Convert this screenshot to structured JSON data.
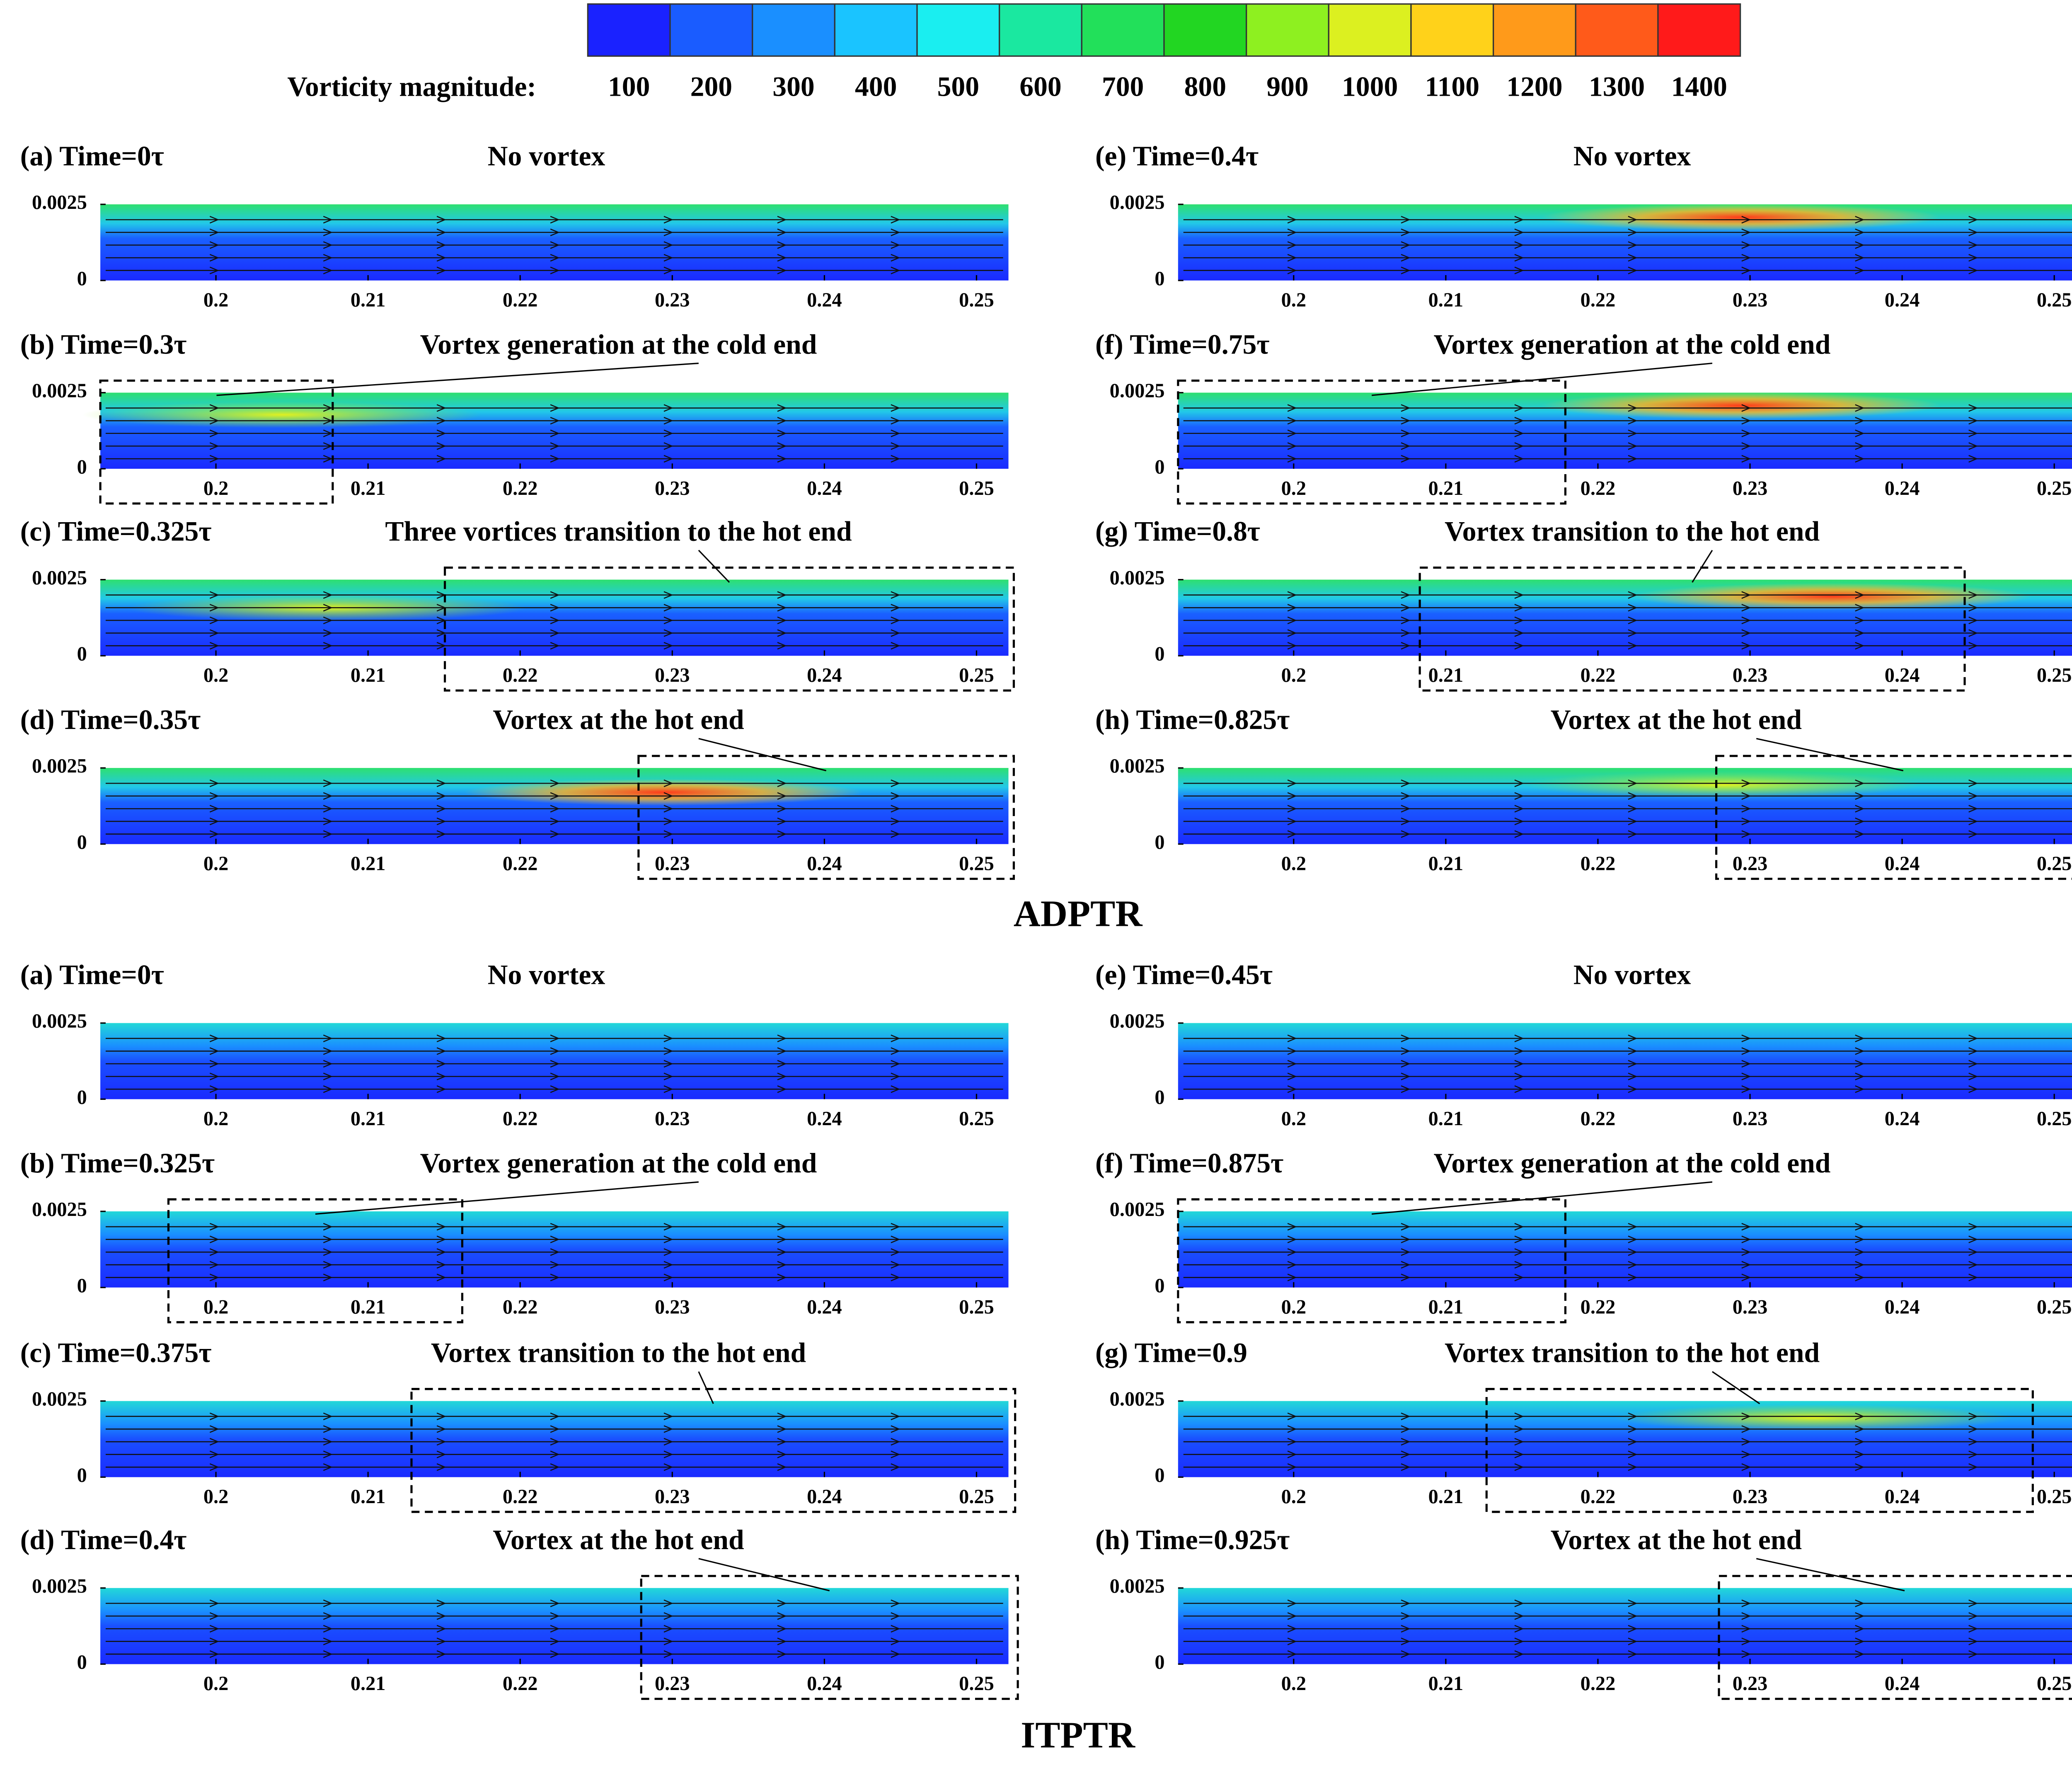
{
  "colorbar": {
    "label": "Vorticity magnitude:",
    "ticks": [
      100,
      200,
      300,
      400,
      500,
      600,
      700,
      800,
      900,
      1000,
      1100,
      1200,
      1300,
      1400
    ],
    "colors": [
      "#1a22ff",
      "#1a5cff",
      "#1a8fff",
      "#1ac4ff",
      "#1aeef0",
      "#1ae8a0",
      "#22e05a",
      "#22d622",
      "#8ef020",
      "#dcf020",
      "#ffd21a",
      "#ff9a1a",
      "#ff5a1a",
      "#ff1a1a"
    ]
  },
  "group_labels": [
    "ADPTR",
    "ITPTR"
  ],
  "chart_data": [
    {
      "type": "contour",
      "title": "(a) Time=0τ",
      "annotation": "No vortex",
      "xlim": [
        0.1924,
        0.2521
      ],
      "ylim": [
        0,
        0.0025
      ],
      "xticks": [
        0.2,
        0.21,
        0.22,
        0.23,
        0.24,
        0.25
      ],
      "yticks": [
        0,
        0.0025
      ]
    },
    {
      "type": "contour",
      "title": "(b) Time=0.3τ",
      "annotation": "Vortex generation at the cold end",
      "xlim": [
        0.1924,
        0.2521
      ],
      "ylim": [
        0,
        0.0025
      ],
      "xticks": [
        0.2,
        0.21,
        0.22,
        0.23,
        0.24,
        0.25
      ],
      "yticks": [
        0,
        0.0025
      ]
    },
    {
      "type": "contour",
      "title": "(c) Time=0.325τ",
      "annotation": "Three vortices transition to the hot end",
      "xlim": [
        0.1924,
        0.2521
      ],
      "ylim": [
        0,
        0.0025
      ],
      "xticks": [
        0.2,
        0.21,
        0.22,
        0.23,
        0.24,
        0.25
      ],
      "yticks": [
        0,
        0.0025
      ]
    },
    {
      "type": "contour",
      "title": "(d) Time=0.35τ",
      "annotation": "Vortex at the hot end",
      "xlim": [
        0.1924,
        0.2521
      ],
      "ylim": [
        0,
        0.0025
      ],
      "xticks": [
        0.2,
        0.21,
        0.22,
        0.23,
        0.24,
        0.25
      ],
      "yticks": [
        0,
        0.0025
      ]
    },
    {
      "type": "contour",
      "title": "(e) Time=0.4τ",
      "annotation": "No vortex",
      "xlim": [
        0.1924,
        0.2521
      ],
      "ylim": [
        0,
        0.0025
      ],
      "xticks": [
        0.2,
        0.21,
        0.22,
        0.23,
        0.24,
        0.25
      ],
      "yticks": [
        0,
        0.0025
      ]
    },
    {
      "type": "contour",
      "title": "(f) Time=0.75τ",
      "annotation": "Vortex generation at the cold end",
      "xlim": [
        0.1924,
        0.2521
      ],
      "ylim": [
        0,
        0.0025
      ],
      "xticks": [
        0.2,
        0.21,
        0.22,
        0.23,
        0.24,
        0.25
      ],
      "yticks": [
        0,
        0.0025
      ]
    },
    {
      "type": "contour",
      "title": "(g) Time=0.8τ",
      "annotation": "Vortex transition to the hot end",
      "xlim": [
        0.1924,
        0.2521
      ],
      "ylim": [
        0,
        0.0025
      ],
      "xticks": [
        0.2,
        0.21,
        0.22,
        0.23,
        0.24,
        0.25
      ],
      "yticks": [
        0,
        0.0025
      ]
    },
    {
      "type": "contour",
      "title": "(h) Time=0.825τ",
      "annotation": "Vortex at the hot end",
      "xlim": [
        0.1924,
        0.2521
      ],
      "ylim": [
        0,
        0.0025
      ],
      "xticks": [
        0.2,
        0.21,
        0.22,
        0.23,
        0.24,
        0.25
      ],
      "yticks": [
        0,
        0.0025
      ]
    },
    {
      "type": "contour",
      "title": "(a) Time=0τ",
      "annotation": "No vortex",
      "xlim": [
        0.1924,
        0.2521
      ],
      "ylim": [
        0,
        0.0025
      ],
      "xticks": [
        0.2,
        0.21,
        0.22,
        0.23,
        0.24,
        0.25
      ],
      "yticks": [
        0,
        0.0025
      ]
    },
    {
      "type": "contour",
      "title": "(b) Time=0.325τ",
      "annotation": "Vortex generation at the cold end",
      "xlim": [
        0.1924,
        0.2521
      ],
      "ylim": [
        0,
        0.0025
      ],
      "xticks": [
        0.2,
        0.21,
        0.22,
        0.23,
        0.24,
        0.25
      ],
      "yticks": [
        0,
        0.0025
      ]
    },
    {
      "type": "contour",
      "title": "(c) Time=0.375τ",
      "annotation": "Vortex transition to the hot end",
      "xlim": [
        0.1924,
        0.2521
      ],
      "ylim": [
        0,
        0.0025
      ],
      "xticks": [
        0.2,
        0.21,
        0.22,
        0.23,
        0.24,
        0.25
      ],
      "yticks": [
        0,
        0.0025
      ]
    },
    {
      "type": "contour",
      "title": "(d) Time=0.4τ",
      "annotation": "Vortex at the hot end",
      "xlim": [
        0.1924,
        0.2521
      ],
      "ylim": [
        0,
        0.0025
      ],
      "xticks": [
        0.2,
        0.21,
        0.22,
        0.23,
        0.24,
        0.25
      ],
      "yticks": [
        0,
        0.0025
      ]
    },
    {
      "type": "contour",
      "title": "(e) Time=0.45τ",
      "annotation": "No vortex",
      "xlim": [
        0.1924,
        0.2521
      ],
      "ylim": [
        0,
        0.0025
      ],
      "xticks": [
        0.2,
        0.21,
        0.22,
        0.23,
        0.24,
        0.25
      ],
      "yticks": [
        0,
        0.0025
      ]
    },
    {
      "type": "contour",
      "title": "(f) Time=0.875τ",
      "annotation": "Vortex generation at the cold end",
      "xlim": [
        0.1924,
        0.2521
      ],
      "ylim": [
        0,
        0.0025
      ],
      "xticks": [
        0.2,
        0.21,
        0.22,
        0.23,
        0.24,
        0.25
      ],
      "yticks": [
        0,
        0.0025
      ]
    },
    {
      "type": "contour",
      "title": "(g) Time=0.9",
      "annotation": "Vortex transition to the hot end",
      "xlim": [
        0.1924,
        0.2521
      ],
      "ylim": [
        0,
        0.0025
      ],
      "xticks": [
        0.2,
        0.21,
        0.22,
        0.23,
        0.24,
        0.25
      ],
      "yticks": [
        0,
        0.0025
      ]
    },
    {
      "type": "contour",
      "title": "(h) Time=0.925τ",
      "annotation": "Vortex at the hot end",
      "xlim": [
        0.1924,
        0.2521
      ],
      "ylim": [
        0,
        0.0025
      ],
      "xticks": [
        0.2,
        0.21,
        0.22,
        0.23,
        0.24,
        0.25
      ],
      "yticks": [
        0,
        0.0025
      ]
    }
  ]
}
